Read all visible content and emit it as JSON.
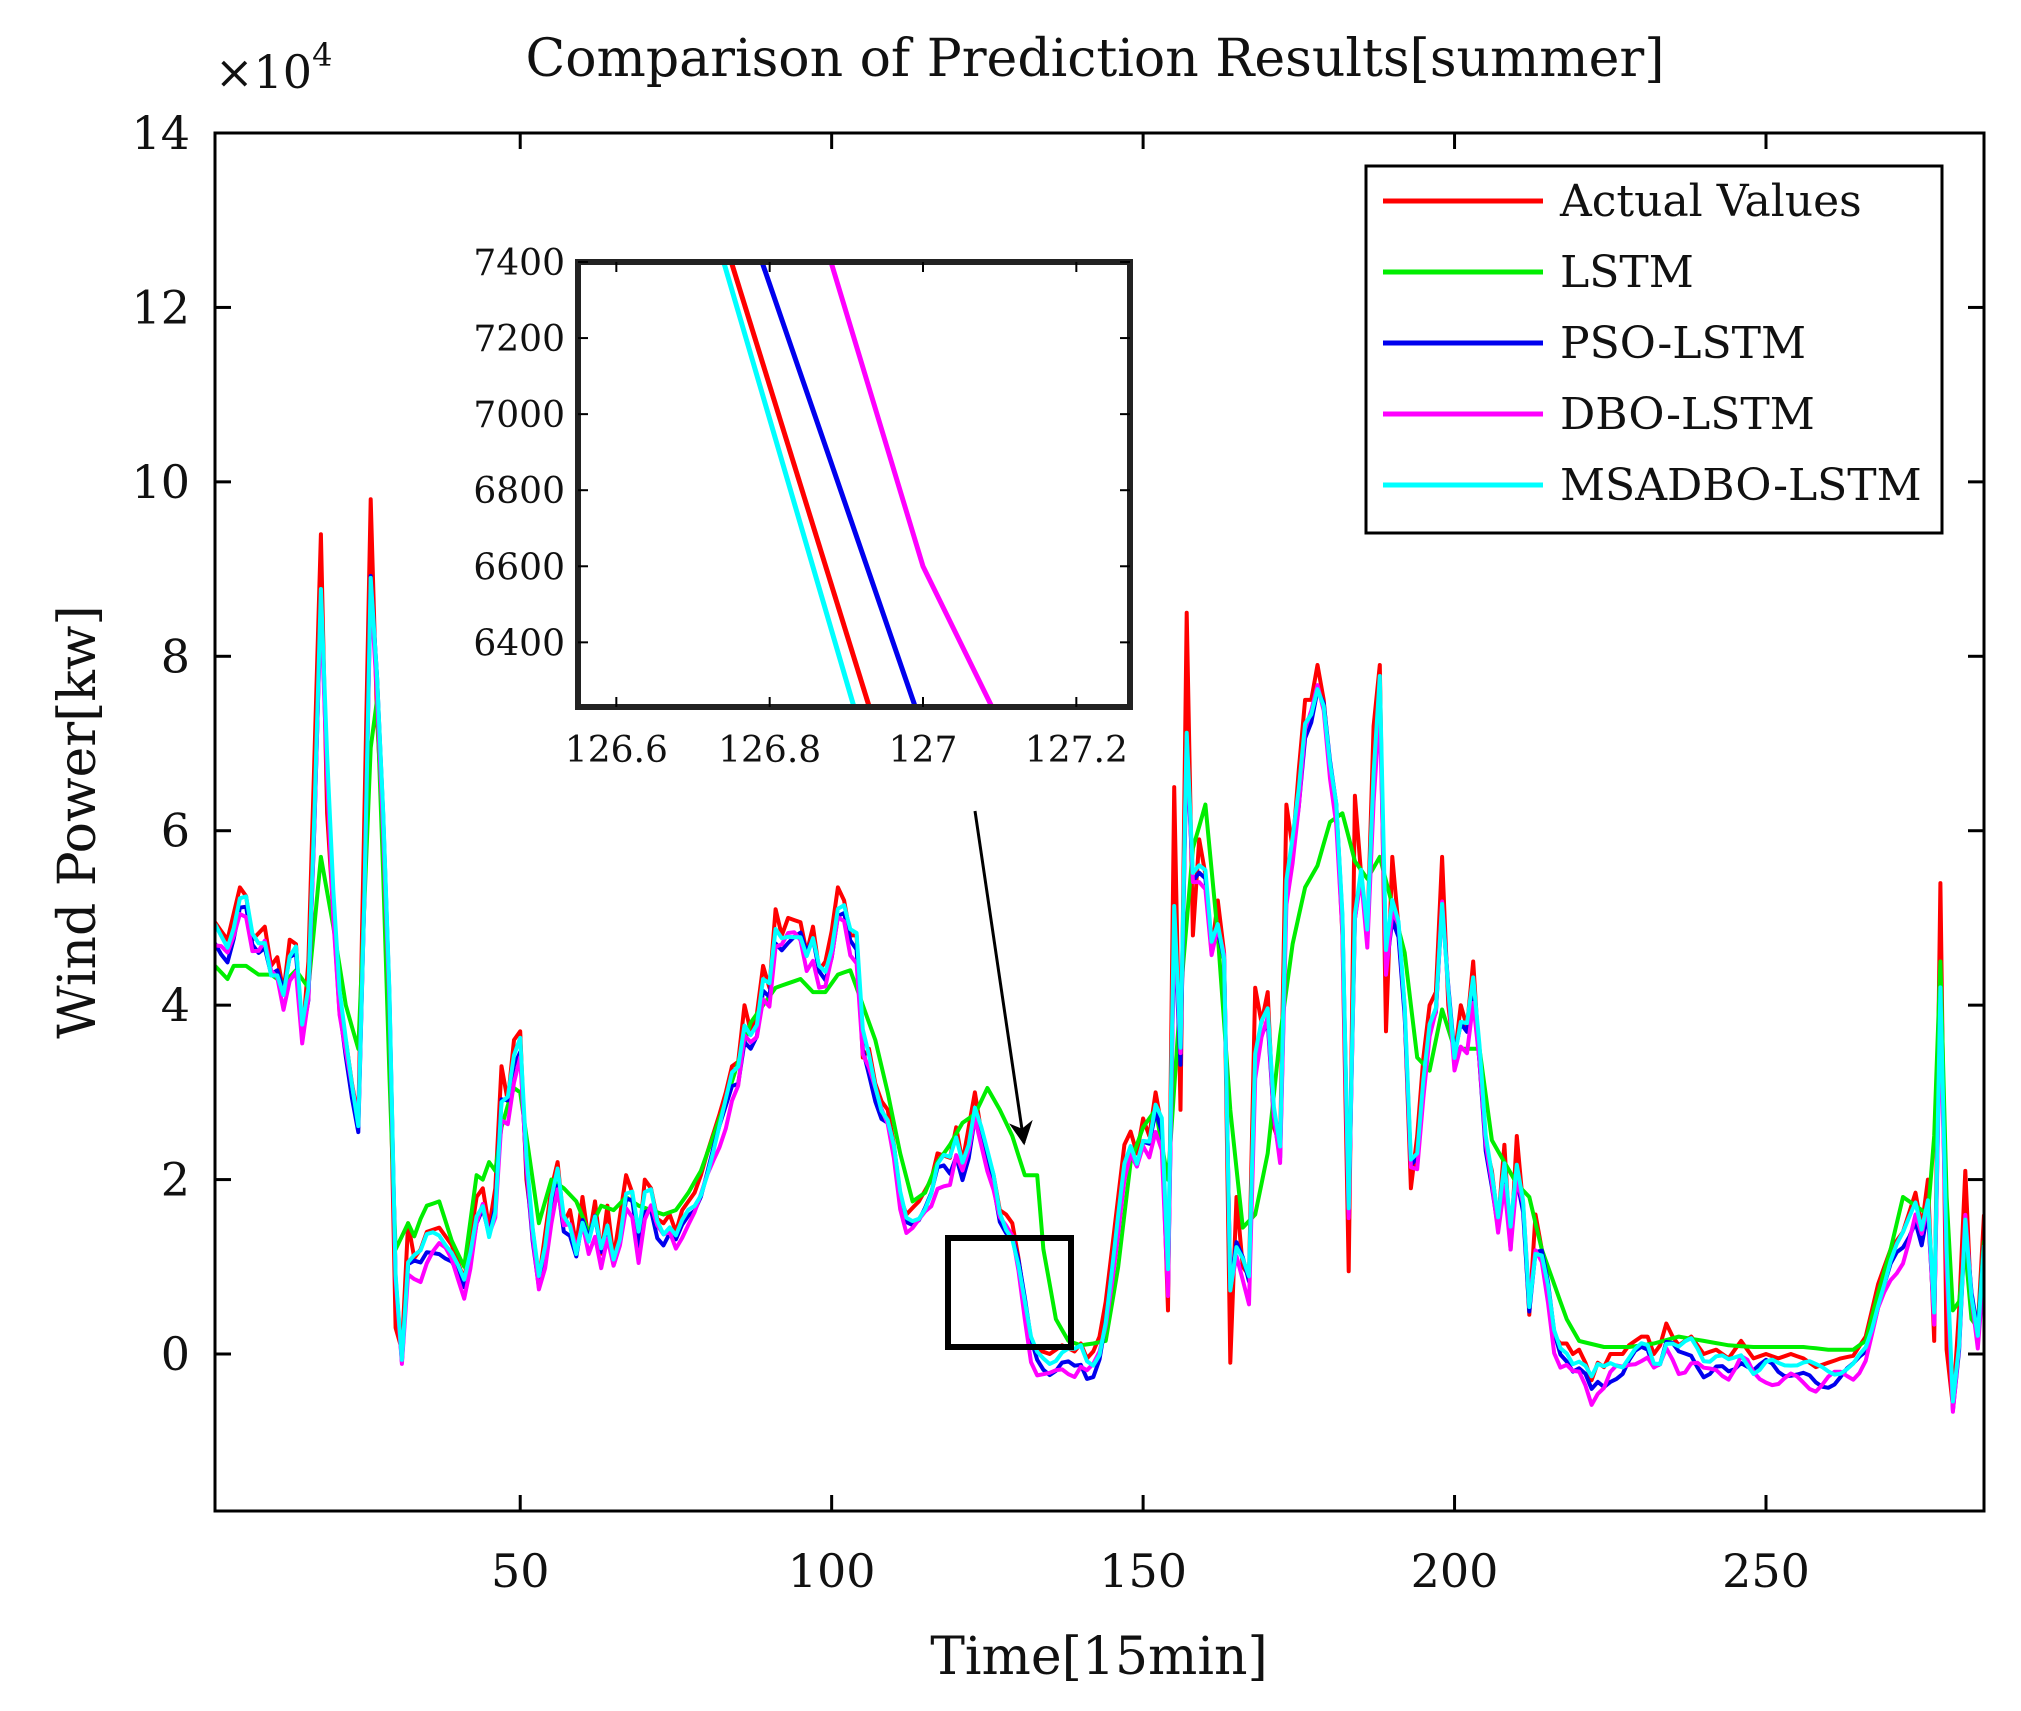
{
  "chart_data": {
    "type": "line",
    "title": "Comparison of Prediction Results[summer]",
    "xlabel": "Time[15min]",
    "ylabel": "Wind Power[kw]",
    "y_multiplier_base": "×10",
    "y_multiplier_exp": "4",
    "xlim": [
      1,
      285
    ],
    "ylim": [
      -18000,
      140000
    ],
    "xticks": [
      50,
      100,
      150,
      200,
      250
    ],
    "yticks": [
      0,
      20000,
      40000,
      60000,
      80000,
      100000,
      120000,
      140000
    ],
    "ytick_labels": [
      "0",
      "2",
      "4",
      "6",
      "8",
      "10",
      "12",
      "14"
    ],
    "legend_position": "top-right",
    "series_names": [
      "Actual Values",
      "LSTM",
      "PSO-LSTM",
      "DBO-LSTM",
      "MSADBO-LSTM"
    ],
    "series_colors": [
      "#ff0000",
      "#00ee00",
      "#0000ee",
      "#ff00ff",
      "#00ffff"
    ],
    "actual_anchors": [
      [
        1,
        49500
      ],
      [
        3,
        47500
      ],
      [
        4,
        50500
      ],
      [
        5,
        53500
      ],
      [
        6,
        52500
      ],
      [
        7,
        47500
      ],
      [
        9,
        49000
      ],
      [
        10,
        44500
      ],
      [
        11,
        45500
      ],
      [
        12,
        41500
      ],
      [
        13,
        47500
      ],
      [
        14,
        47000
      ],
      [
        15,
        36000
      ],
      [
        16,
        45000
      ],
      [
        18,
        94000
      ],
      [
        19,
        62000
      ],
      [
        21,
        39000
      ],
      [
        22,
        36000
      ],
      [
        23,
        31000
      ],
      [
        24,
        27000
      ],
      [
        26,
        98000
      ],
      [
        27,
        73000
      ],
      [
        28,
        60000
      ],
      [
        29,
        38000
      ],
      [
        30,
        3000
      ],
      [
        31,
        500
      ],
      [
        32,
        15000
      ],
      [
        33,
        11000
      ],
      [
        34,
        12000
      ],
      [
        35,
        14000
      ],
      [
        37,
        14500
      ],
      [
        39,
        12500
      ],
      [
        41,
        8500
      ],
      [
        43,
        18000
      ],
      [
        44,
        19000
      ],
      [
        45,
        14500
      ],
      [
        46,
        19000
      ],
      [
        47,
        33000
      ],
      [
        48,
        29000
      ],
      [
        49,
        36000
      ],
      [
        50,
        37000
      ],
      [
        51,
        20000
      ],
      [
        53,
        8500
      ],
      [
        55,
        19000
      ],
      [
        56,
        22000
      ],
      [
        57,
        15000
      ],
      [
        58,
        16500
      ],
      [
        59,
        12500
      ],
      [
        60,
        18000
      ],
      [
        61,
        13000
      ],
      [
        62,
        17500
      ],
      [
        63,
        11500
      ],
      [
        64,
        17000
      ],
      [
        65,
        11000
      ],
      [
        67,
        20500
      ],
      [
        68,
        18500
      ],
      [
        69,
        12500
      ],
      [
        70,
        20000
      ],
      [
        71,
        19000
      ],
      [
        72,
        15500
      ],
      [
        73,
        15000
      ],
      [
        74,
        16000
      ],
      [
        75,
        14000
      ],
      [
        76,
        16500
      ],
      [
        78,
        18500
      ],
      [
        79,
        20500
      ],
      [
        80,
        23000
      ],
      [
        82,
        27500
      ],
      [
        83,
        30000
      ],
      [
        84,
        33000
      ],
      [
        85,
        33500
      ],
      [
        86,
        40000
      ],
      [
        87,
        37000
      ],
      [
        88,
        39000
      ],
      [
        89,
        44500
      ],
      [
        90,
        42000
      ],
      [
        91,
        51000
      ],
      [
        92,
        48000
      ],
      [
        93,
        50000
      ],
      [
        95,
        49500
      ],
      [
        96,
        46000
      ],
      [
        97,
        49000
      ],
      [
        98,
        44000
      ],
      [
        99,
        45000
      ],
      [
        100,
        48500
      ],
      [
        101,
        53500
      ],
      [
        102,
        52000
      ],
      [
        103,
        48000
      ],
      [
        104,
        48000
      ],
      [
        105,
        34000
      ],
      [
        106,
        35000
      ],
      [
        107,
        31000
      ],
      [
        108,
        29000
      ],
      [
        109,
        28000
      ],
      [
        110,
        24000
      ],
      [
        111,
        18000
      ],
      [
        112,
        16000
      ],
      [
        114,
        17500
      ],
      [
        116,
        20000
      ],
      [
        117,
        23000
      ],
      [
        119,
        22500
      ],
      [
        120,
        26000
      ],
      [
        121,
        22000
      ],
      [
        122,
        26000
      ],
      [
        123,
        30000
      ],
      [
        124,
        25500
      ],
      [
        125,
        23000
      ],
      [
        126,
        20500
      ],
      [
        127,
        16500
      ],
      [
        128,
        16000
      ],
      [
        129,
        15000
      ],
      [
        130,
        11000
      ],
      [
        131,
        6000
      ],
      [
        132,
        1500
      ],
      [
        133,
        500
      ],
      [
        135,
        0
      ],
      [
        137,
        1000
      ],
      [
        139,
        300
      ],
      [
        140,
        1200
      ],
      [
        141,
        -500
      ],
      [
        142,
        300
      ],
      [
        143,
        2000
      ],
      [
        144,
        6000
      ],
      [
        145,
        12000
      ],
      [
        146,
        18000
      ],
      [
        147,
        24000
      ],
      [
        148,
        25500
      ],
      [
        149,
        23000
      ],
      [
        150,
        27000
      ],
      [
        151,
        25000
      ],
      [
        152,
        30000
      ],
      [
        153,
        26000
      ],
      [
        154,
        5000
      ],
      [
        155,
        65000
      ],
      [
        156,
        28000
      ],
      [
        157,
        85000
      ],
      [
        158,
        48000
      ],
      [
        159,
        59000
      ],
      [
        160,
        55000
      ],
      [
        161,
        46000
      ],
      [
        162,
        52000
      ],
      [
        163,
        46000
      ],
      [
        164,
        -1000
      ],
      [
        165,
        18000
      ],
      [
        166,
        10000
      ],
      [
        167,
        9000
      ],
      [
        168,
        42000
      ],
      [
        169,
        38000
      ],
      [
        170,
        41500
      ],
      [
        171,
        26000
      ],
      [
        172,
        24000
      ],
      [
        173,
        63000
      ],
      [
        174,
        58000
      ],
      [
        175,
        67000
      ],
      [
        176,
        75000
      ],
      [
        177,
        75000
      ],
      [
        178,
        79000
      ],
      [
        179,
        75000
      ],
      [
        180,
        67000
      ],
      [
        181,
        63000
      ],
      [
        182,
        48000
      ],
      [
        183,
        9500
      ],
      [
        184,
        64000
      ],
      [
        185,
        55000
      ],
      [
        186,
        48000
      ],
      [
        187,
        72000
      ],
      [
        188,
        79000
      ],
      [
        189,
        37000
      ],
      [
        190,
        57000
      ],
      [
        191,
        49000
      ],
      [
        192,
        39000
      ],
      [
        193,
        19000
      ],
      [
        194,
        25000
      ],
      [
        195,
        34000
      ],
      [
        196,
        40000
      ],
      [
        197,
        41500
      ],
      [
        198,
        57000
      ],
      [
        199,
        40000
      ],
      [
        200,
        34000
      ],
      [
        201,
        40000
      ],
      [
        202,
        37500
      ],
      [
        203,
        45000
      ],
      [
        204,
        33500
      ],
      [
        205,
        24000
      ],
      [
        206,
        21000
      ],
      [
        207,
        15000
      ],
      [
        208,
        24000
      ],
      [
        209,
        12000
      ],
      [
        210,
        25000
      ],
      [
        211,
        17000
      ],
      [
        212,
        4500
      ],
      [
        213,
        16000
      ],
      [
        214,
        12000
      ],
      [
        215,
        8000
      ],
      [
        216,
        2000
      ],
      [
        217,
        1200
      ],
      [
        218,
        1200
      ],
      [
        219,
        0
      ],
      [
        220,
        500
      ],
      [
        221,
        -1000
      ],
      [
        222,
        -3000
      ],
      [
        223,
        -1000
      ],
      [
        224,
        -1500
      ],
      [
        225,
        0
      ],
      [
        227,
        0
      ],
      [
        228,
        1000
      ],
      [
        230,
        2000
      ],
      [
        231,
        2000
      ],
      [
        232,
        0
      ],
      [
        233,
        1000
      ],
      [
        234,
        3500
      ],
      [
        235,
        2000
      ],
      [
        236,
        1000
      ],
      [
        238,
        2000
      ],
      [
        240,
        0
      ],
      [
        242,
        500
      ],
      [
        244,
        -500
      ],
      [
        246,
        1500
      ],
      [
        248,
        -500
      ],
      [
        250,
        0
      ],
      [
        252,
        -500
      ],
      [
        254,
        0
      ],
      [
        256,
        -500
      ],
      [
        258,
        -1500
      ],
      [
        260,
        -1000
      ],
      [
        262,
        -500
      ],
      [
        264,
        -200
      ],
      [
        266,
        2000
      ],
      [
        268,
        8000
      ],
      [
        270,
        12000
      ],
      [
        272,
        14000
      ],
      [
        274,
        18500
      ],
      [
        275,
        14500
      ],
      [
        276,
        20000
      ],
      [
        277,
        1500
      ],
      [
        278,
        54000
      ],
      [
        279,
        500
      ],
      [
        280,
        -6000
      ],
      [
        281,
        5000
      ],
      [
        282,
        21000
      ],
      [
        283,
        5000
      ],
      [
        284,
        3000
      ],
      [
        285,
        16000
      ]
    ],
    "lstm_anchors": [
      [
        1,
        44500
      ],
      [
        3,
        43000
      ],
      [
        4,
        44500
      ],
      [
        6,
        44500
      ],
      [
        8,
        43500
      ],
      [
        10,
        43500
      ],
      [
        12,
        42500
      ],
      [
        14,
        44000
      ],
      [
        16,
        42000
      ],
      [
        18,
        57000
      ],
      [
        20,
        49000
      ],
      [
        22,
        40000
      ],
      [
        24,
        35000
      ],
      [
        25,
        52000
      ],
      [
        26,
        69500
      ],
      [
        27,
        75000
      ],
      [
        28,
        55000
      ],
      [
        29,
        32000
      ],
      [
        30,
        12000
      ],
      [
        31,
        13500
      ],
      [
        32,
        15000
      ],
      [
        33,
        13500
      ],
      [
        34,
        15500
      ],
      [
        35,
        17000
      ],
      [
        37,
        17500
      ],
      [
        39,
        13000
      ],
      [
        41,
        10000
      ],
      [
        43,
        20500
      ],
      [
        44,
        20000
      ],
      [
        45,
        22000
      ],
      [
        46,
        21000
      ],
      [
        47,
        26000
      ],
      [
        48,
        28500
      ],
      [
        49,
        30500
      ],
      [
        50,
        30000
      ],
      [
        51,
        25000
      ],
      [
        53,
        15000
      ],
      [
        55,
        20000
      ],
      [
        57,
        19000
      ],
      [
        59,
        17500
      ],
      [
        61,
        14000
      ],
      [
        63,
        17000
      ],
      [
        65,
        16500
      ],
      [
        67,
        18000
      ],
      [
        69,
        17000
      ],
      [
        71,
        16500
      ],
      [
        73,
        16000
      ],
      [
        75,
        16500
      ],
      [
        77,
        18500
      ],
      [
        79,
        21000
      ],
      [
        81,
        25000
      ],
      [
        83,
        29000
      ],
      [
        85,
        33500
      ],
      [
        87,
        38000
      ],
      [
        89,
        40000
      ],
      [
        91,
        42000
      ],
      [
        93,
        42500
      ],
      [
        95,
        43000
      ],
      [
        97,
        41500
      ],
      [
        99,
        41500
      ],
      [
        101,
        43500
      ],
      [
        103,
        44000
      ],
      [
        105,
        40000
      ],
      [
        107,
        36000
      ],
      [
        109,
        30000
      ],
      [
        111,
        23000
      ],
      [
        113,
        17500
      ],
      [
        115,
        18500
      ],
      [
        117,
        22000
      ],
      [
        119,
        24000
      ],
      [
        121,
        26500
      ],
      [
        123,
        27500
      ],
      [
        125,
        30500
      ],
      [
        127,
        28000
      ],
      [
        129,
        25000
      ],
      [
        131,
        20500
      ],
      [
        133,
        20500
      ],
      [
        134,
        12000
      ],
      [
        136,
        4000
      ],
      [
        138,
        1500
      ],
      [
        140,
        1000
      ],
      [
        142,
        1200
      ],
      [
        144,
        1500
      ],
      [
        146,
        10000
      ],
      [
        148,
        22000
      ],
      [
        150,
        26000
      ],
      [
        152,
        28000
      ],
      [
        154,
        20000
      ],
      [
        156,
        41000
      ],
      [
        158,
        58000
      ],
      [
        160,
        63000
      ],
      [
        162,
        48000
      ],
      [
        164,
        28000
      ],
      [
        166,
        14500
      ],
      [
        168,
        16000
      ],
      [
        170,
        23000
      ],
      [
        172,
        36500
      ],
      [
        174,
        47000
      ],
      [
        176,
        53500
      ],
      [
        178,
        56000
      ],
      [
        180,
        61000
      ],
      [
        182,
        62000
      ],
      [
        184,
        56500
      ],
      [
        186,
        54500
      ],
      [
        188,
        57000
      ],
      [
        190,
        51500
      ],
      [
        192,
        46000
      ],
      [
        194,
        34000
      ],
      [
        196,
        32500
      ],
      [
        198,
        39500
      ],
      [
        200,
        35000
      ],
      [
        202,
        35000
      ],
      [
        204,
        35000
      ],
      [
        206,
        24500
      ],
      [
        208,
        22000
      ],
      [
        210,
        19500
      ],
      [
        212,
        18000
      ],
      [
        214,
        12000
      ],
      [
        216,
        8000
      ],
      [
        218,
        4000
      ],
      [
        220,
        1500
      ],
      [
        224,
        800
      ],
      [
        228,
        800
      ],
      [
        232,
        1200
      ],
      [
        236,
        2000
      ],
      [
        240,
        1500
      ],
      [
        244,
        1000
      ],
      [
        248,
        800
      ],
      [
        252,
        800
      ],
      [
        256,
        800
      ],
      [
        260,
        500
      ],
      [
        264,
        500
      ],
      [
        266,
        1500
      ],
      [
        268,
        7000
      ],
      [
        270,
        12000
      ],
      [
        272,
        18000
      ],
      [
        274,
        17000
      ],
      [
        276,
        16000
      ],
      [
        277,
        25000
      ],
      [
        278,
        45000
      ],
      [
        279,
        18000
      ],
      [
        280,
        5000
      ],
      [
        281,
        6000
      ],
      [
        282,
        12000
      ],
      [
        283,
        4000
      ],
      [
        284,
        3000
      ],
      [
        285,
        13000
      ]
    ],
    "inset": {
      "xlim": [
        126.55,
        127.27
      ],
      "ylim": [
        6230,
        7400
      ],
      "xticks": [
        126.6,
        126.8,
        127,
        127.2
      ],
      "xtick_labels": [
        "126.6",
        "126.8",
        "127",
        "127.2"
      ],
      "yticks": [
        6400,
        6600,
        6800,
        7000,
        7200,
        7400
      ],
      "lines": [
        {
          "series": "MSADBO-LSTM",
          "points": [
            [
              126.74,
              7400
            ],
            [
              126.91,
              6230
            ]
          ]
        },
        {
          "series": "Actual Values",
          "points": [
            [
              126.75,
              7400
            ],
            [
              126.93,
              6230
            ]
          ]
        },
        {
          "series": "PSO-LSTM",
          "points": [
            [
              126.79,
              7400
            ],
            [
              126.99,
              6230
            ]
          ]
        },
        {
          "series": "DBO-LSTM",
          "points": [
            [
              126.88,
              7400
            ],
            [
              127.0,
              6600
            ],
            [
              127.09,
              6230
            ]
          ]
        }
      ]
    }
  }
}
